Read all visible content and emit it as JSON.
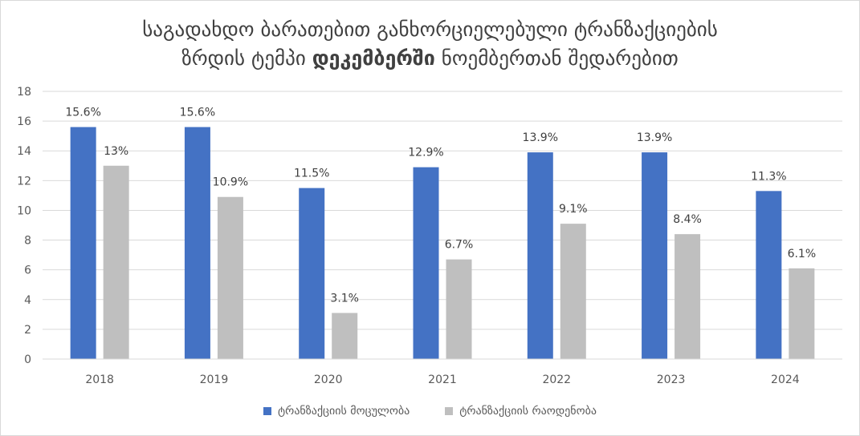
{
  "chart_data": {
    "type": "bar",
    "title_line1": "საგადახდო ბარათებით განხორციელებული ტრანზაქციების",
    "title_line2_pre": "ზრდის ტემპი ",
    "title_line2_bold": "დეკემბერში",
    "title_line2_post": " ნოემბერთან შედარებით",
    "categories": [
      "2018",
      "2019",
      "2020",
      "2021",
      "2022",
      "2023",
      "2024"
    ],
    "series": [
      {
        "name": "ტრანზაქციის მოცულობა",
        "color": "#4472c4",
        "values": [
          15.6,
          15.6,
          11.5,
          12.9,
          13.9,
          13.9,
          11.3
        ],
        "labels": [
          "15.6%",
          "15.6%",
          "11.5%",
          "12.9%",
          "13.9%",
          "13.9%",
          "11.3%"
        ]
      },
      {
        "name": "ტრანზაქციის რაოდენობა",
        "color": "#bfbfbf",
        "values": [
          13,
          10.9,
          3.1,
          6.7,
          9.1,
          8.4,
          6.1
        ],
        "labels": [
          "13%",
          "10.9%",
          "3.1%",
          "6.7%",
          "9.1%",
          "8.4%",
          "6.1%"
        ]
      }
    ],
    "yticks": [
      0,
      2,
      4,
      6,
      8,
      10,
      12,
      14,
      16,
      18
    ],
    "ylim": [
      0,
      18
    ],
    "grid": true,
    "legend_position": "bottom"
  }
}
